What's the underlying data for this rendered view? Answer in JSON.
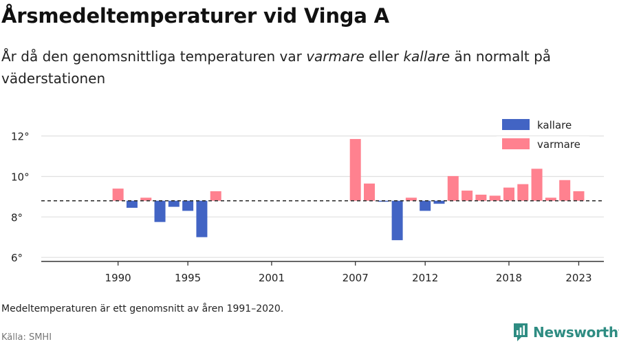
{
  "title": "Årsmedeltemperaturer vid Vinga A",
  "subtitle": {
    "part1": "År då den genomsnittliga temperaturen var ",
    "warm": "varmare",
    "part2": " eller ",
    "cold": "kallare",
    "part3": " än normalt på väderstationen"
  },
  "note": "Medeltemperaturen är ett genomsnitt av åren 1991–2020.",
  "source": "Källa: SMHI",
  "brand": {
    "name": "Newsworthy",
    "icon": "newsworthy-logo-icon"
  },
  "colors": {
    "kallare": "#4264c4",
    "varmare": "#ff818f",
    "baseline": "#333333",
    "grid": "#e0e0e0"
  },
  "chart_data": {
    "type": "bar",
    "baseline": 8.8,
    "ylim": [
      5.8,
      12.6
    ],
    "yticks": [
      6,
      8,
      10,
      12
    ],
    "ytick_labels": [
      "6°",
      "8°",
      "10°",
      "12°"
    ],
    "xlim": [
      1984.5,
      2024.8
    ],
    "xticks": [
      1990,
      1995,
      2001,
      2007,
      2012,
      2018,
      2023
    ],
    "grid": true,
    "legend_position": "top-right",
    "series": [
      {
        "name": "kallare",
        "color": "#4264c4"
      },
      {
        "name": "varmare",
        "color": "#ff818f"
      }
    ],
    "points": [
      {
        "x": 1990,
        "y": 9.4
      },
      {
        "x": 1991,
        "y": 8.45
      },
      {
        "x": 1992,
        "y": 8.95
      },
      {
        "x": 1993,
        "y": 7.75
      },
      {
        "x": 1994,
        "y": 8.5
      },
      {
        "x": 1995,
        "y": 8.3
      },
      {
        "x": 1996,
        "y": 7.0
      },
      {
        "x": 1997,
        "y": 9.27
      },
      {
        "x": 2007,
        "y": 11.85
      },
      {
        "x": 2008,
        "y": 9.65
      },
      {
        "x": 2009,
        "y": 8.75
      },
      {
        "x": 2010,
        "y": 6.85
      },
      {
        "x": 2011,
        "y": 8.95
      },
      {
        "x": 2012,
        "y": 8.3
      },
      {
        "x": 2013,
        "y": 8.65
      },
      {
        "x": 2014,
        "y": 10.02
      },
      {
        "x": 2015,
        "y": 9.3
      },
      {
        "x": 2016,
        "y": 9.1
      },
      {
        "x": 2017,
        "y": 9.05
      },
      {
        "x": 2018,
        "y": 9.45
      },
      {
        "x": 2019,
        "y": 9.62
      },
      {
        "x": 2020,
        "y": 10.38
      },
      {
        "x": 2021,
        "y": 8.95
      },
      {
        "x": 2022,
        "y": 9.82
      },
      {
        "x": 2023,
        "y": 9.27
      }
    ]
  }
}
